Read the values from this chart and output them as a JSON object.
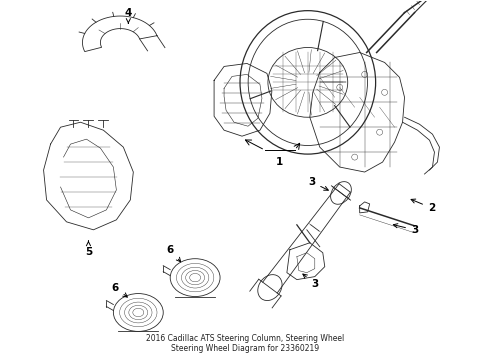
{
  "title_line1": "2016 Cadillac ATS Steering Column, Steering Wheel",
  "title_line2": "Steering Wheel Diagram for 23360219",
  "background_color": "#ffffff",
  "line_color": "#2a2a2a",
  "label_color": "#000000",
  "fig_width": 4.9,
  "fig_height": 3.6,
  "dpi": 100,
  "lw": 0.6
}
